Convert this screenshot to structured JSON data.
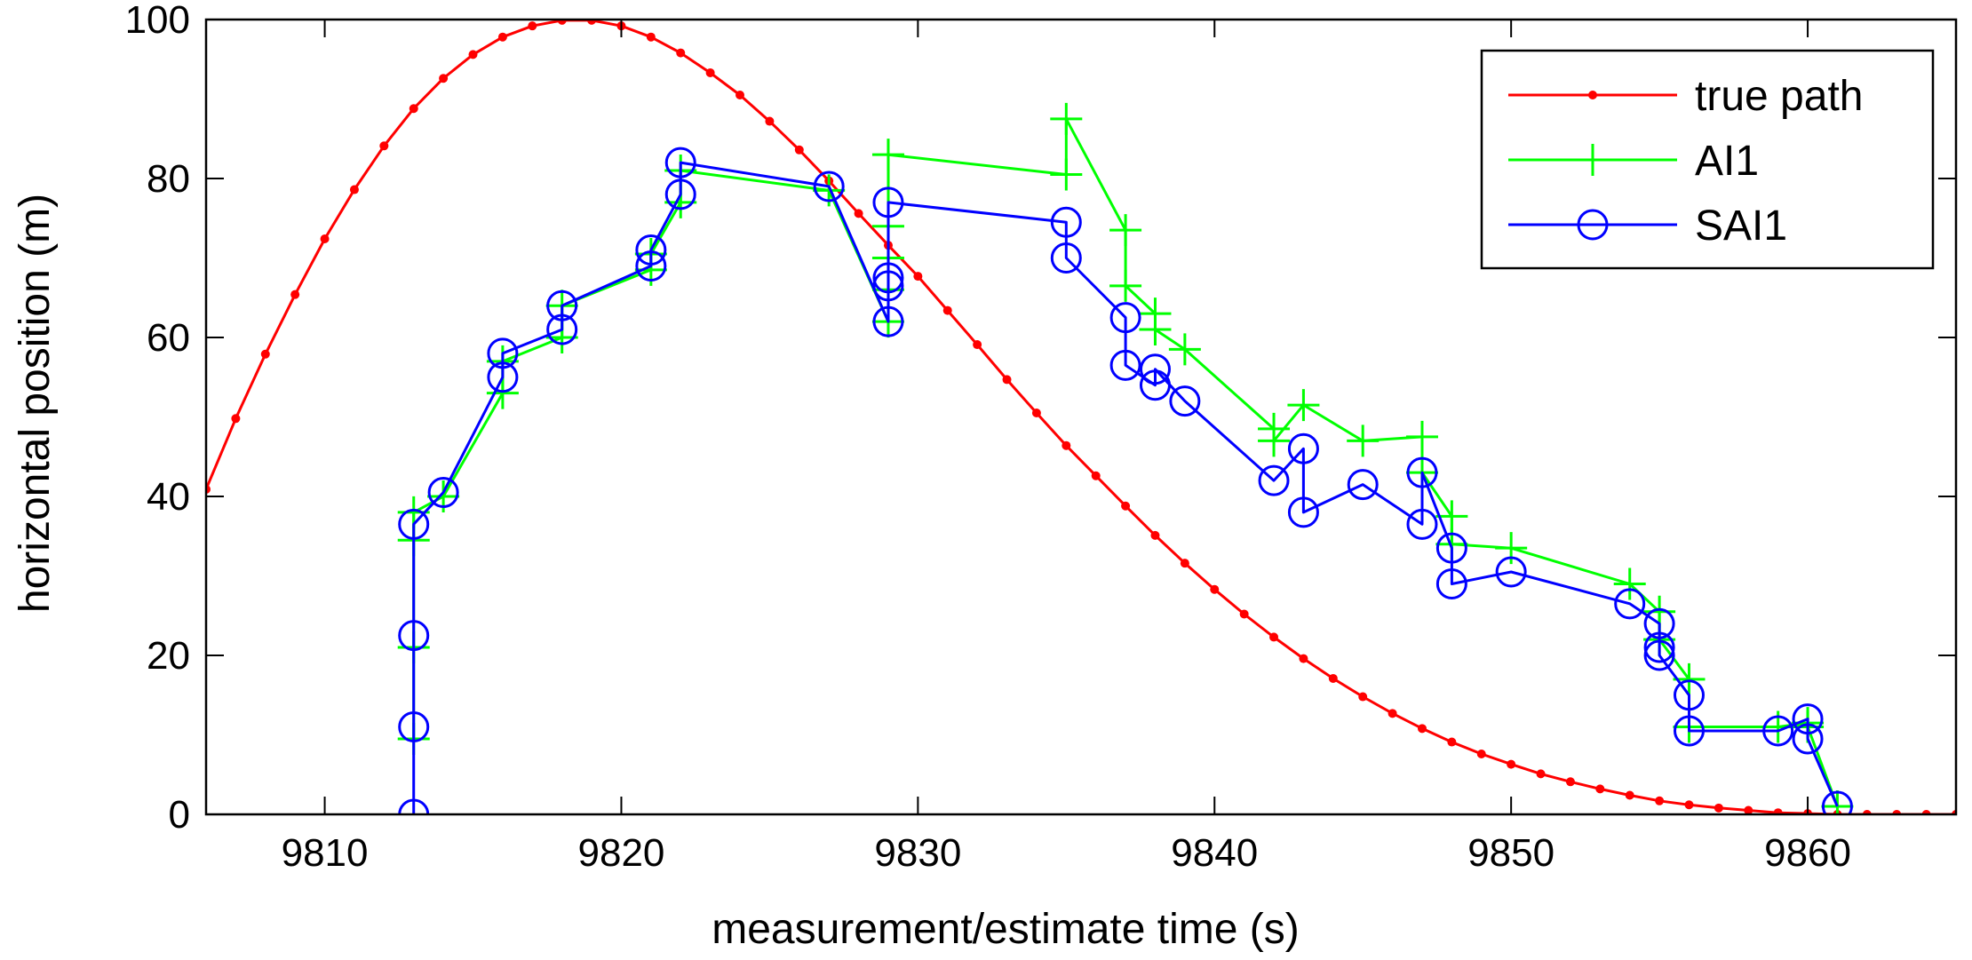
{
  "chart_data": {
    "type": "line",
    "title": "",
    "xlabel": "measurement/estimate time (s)",
    "ylabel": "horizontal position (m)",
    "xlim": [
      9806,
      9865
    ],
    "ylim": [
      0,
      100
    ],
    "xticks": [
      9810,
      9820,
      9830,
      9840,
      9850,
      9860
    ],
    "yticks": [
      0,
      20,
      40,
      60,
      80,
      100
    ],
    "grid": false,
    "legend_position": "top-right",
    "series": [
      {
        "name": "true path",
        "color": "#ff0000",
        "marker": "dot",
        "points": [
          [
            9806,
            40.9
          ],
          [
            9807,
            49.8
          ],
          [
            9808,
            57.9
          ],
          [
            9809,
            65.4
          ],
          [
            9810,
            72.4
          ],
          [
            9811,
            78.6
          ],
          [
            9812,
            84.1
          ],
          [
            9813,
            88.8
          ],
          [
            9814,
            92.6
          ],
          [
            9815,
            95.6
          ],
          [
            9816,
            97.8
          ],
          [
            9817,
            99.2
          ],
          [
            9818,
            99.9
          ],
          [
            9819,
            99.9
          ],
          [
            9820,
            99.2
          ],
          [
            9821,
            97.8
          ],
          [
            9822,
            95.8
          ],
          [
            9823,
            93.3
          ],
          [
            9824,
            90.5
          ],
          [
            9825,
            87.2
          ],
          [
            9826,
            83.6
          ],
          [
            9827,
            79.7
          ],
          [
            9828,
            75.6
          ],
          [
            9829,
            71.6
          ],
          [
            9830,
            67.7
          ],
          [
            9831,
            63.4
          ],
          [
            9832,
            59.1
          ],
          [
            9833,
            54.7
          ],
          [
            9834,
            50.5
          ],
          [
            9835,
            46.4
          ],
          [
            9836,
            42.6
          ],
          [
            9837,
            38.8
          ],
          [
            9838,
            35.1
          ],
          [
            9839,
            31.6
          ],
          [
            9840,
            28.3
          ],
          [
            9841,
            25.2
          ],
          [
            9842,
            22.3
          ],
          [
            9843,
            19.6
          ],
          [
            9844,
            17.1
          ],
          [
            9845,
            14.8
          ],
          [
            9846,
            12.7
          ],
          [
            9847,
            10.8
          ],
          [
            9848,
            9.1
          ],
          [
            9849,
            7.6
          ],
          [
            9850,
            6.3
          ],
          [
            9851,
            5.1
          ],
          [
            9852,
            4.1
          ],
          [
            9853,
            3.2
          ],
          [
            9854,
            2.4
          ],
          [
            9855,
            1.7
          ],
          [
            9856,
            1.2
          ],
          [
            9857,
            0.8
          ],
          [
            9858,
            0.5
          ],
          [
            9859,
            0.2
          ],
          [
            9860,
            0.1
          ],
          [
            9861,
            0
          ],
          [
            9862,
            0
          ],
          [
            9863,
            0
          ],
          [
            9864,
            0
          ],
          [
            9865,
            0
          ]
        ]
      },
      {
        "name": "AI1",
        "color": "#00ff00",
        "marker": "plus",
        "points": [
          [
            9813,
            9.5
          ],
          [
            9813,
            21
          ],
          [
            9813,
            34.5
          ],
          [
            9813,
            38
          ],
          [
            9814,
            40
          ],
          [
            9816,
            53
          ],
          [
            9816,
            57
          ],
          [
            9818,
            60
          ],
          [
            9818,
            64
          ],
          [
            9821,
            68.5
          ],
          [
            9821,
            70.5
          ],
          [
            9822,
            77
          ],
          [
            9822,
            81
          ],
          [
            9827,
            78.5
          ],
          [
            9829,
            62
          ],
          [
            9829,
            66
          ],
          [
            9829,
            70
          ],
          [
            9829,
            74
          ],
          [
            9829,
            83
          ],
          [
            9835,
            80.5
          ],
          [
            9835,
            87.5
          ],
          [
            9837,
            73.5
          ],
          [
            9837,
            66.5
          ],
          [
            9838,
            63
          ],
          [
            9838,
            61
          ],
          [
            9839,
            58.5
          ],
          [
            9842,
            48.5
          ],
          [
            9842,
            47
          ],
          [
            9843,
            51.5
          ],
          [
            9845,
            47
          ],
          [
            9847,
            47.5
          ],
          [
            9847,
            43
          ],
          [
            9848,
            37.5
          ],
          [
            9848,
            34
          ],
          [
            9850,
            33.5
          ],
          [
            9854,
            29
          ],
          [
            9855,
            25.5
          ],
          [
            9855,
            22
          ],
          [
            9856,
            17
          ],
          [
            9856,
            11
          ],
          [
            9859,
            11
          ],
          [
            9860,
            11.5
          ],
          [
            9860,
            11
          ],
          [
            9861,
            1
          ]
        ]
      },
      {
        "name": "SAI1",
        "color": "#0000ff",
        "marker": "circle",
        "points": [
          [
            9813,
            0
          ],
          [
            9813,
            11
          ],
          [
            9813,
            22.5
          ],
          [
            9813,
            36.5
          ],
          [
            9814,
            40.5
          ],
          [
            9816,
            55
          ],
          [
            9816,
            58
          ],
          [
            9818,
            61
          ],
          [
            9818,
            64
          ],
          [
            9821,
            69
          ],
          [
            9821,
            71
          ],
          [
            9822,
            78
          ],
          [
            9822,
            82
          ],
          [
            9827,
            79
          ],
          [
            9829,
            62
          ],
          [
            9829,
            66.5
          ],
          [
            9829,
            67.5
          ],
          [
            9829,
            77
          ],
          [
            9835,
            74.5
          ],
          [
            9835,
            70
          ],
          [
            9837,
            62.5
          ],
          [
            9837,
            56.5
          ],
          [
            9838,
            54
          ],
          [
            9838,
            56
          ],
          [
            9839,
            52
          ],
          [
            9842,
            42
          ],
          [
            9843,
            46
          ],
          [
            9843,
            38
          ],
          [
            9845,
            41.5
          ],
          [
            9847,
            36.5
          ],
          [
            9847,
            43
          ],
          [
            9848,
            33.5
          ],
          [
            9848,
            29
          ],
          [
            9850,
            30.5
          ],
          [
            9854,
            26.5
          ],
          [
            9855,
            24
          ],
          [
            9855,
            21
          ],
          [
            9855,
            20
          ],
          [
            9856,
            15
          ],
          [
            9856,
            10.5
          ],
          [
            9859,
            10.5
          ],
          [
            9860,
            12
          ],
          [
            9860,
            9.5
          ],
          [
            9861,
            1
          ]
        ]
      }
    ]
  }
}
